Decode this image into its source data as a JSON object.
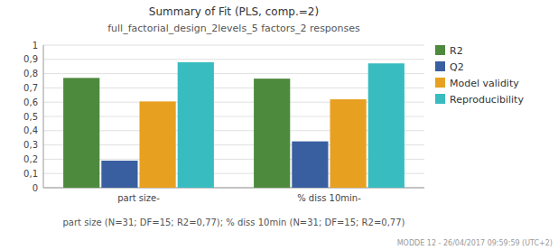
{
  "chart_data": {
    "type": "bar",
    "title": "Summary of Fit (PLS, comp.=2)",
    "subtitle": "full_factorial_design_2levels_5 factors_2 responses",
    "xlabel": "part size (N=31; DF=15; R2=0,77); % diss 10min (N=31; DF=15; R2=0,77)",
    "annotations": [
      "MODDE 12 - 26/04/2017 09:59:59 (UTC+2)"
    ],
    "categories": [
      "part size-",
      "% diss 10min-"
    ],
    "series": [
      {
        "name": "R2",
        "color": "#4e8a3e",
        "values": [
          0.77,
          0.765
        ]
      },
      {
        "name": "Q2",
        "color": "#3a5fa0",
        "values": [
          0.19,
          0.325
        ]
      },
      {
        "name": "Model validity",
        "color": "#e8a020",
        "values": [
          0.605,
          0.62
        ]
      },
      {
        "name": "Reproducibility",
        "color": "#38bcc0",
        "values": [
          0.88,
          0.872
        ]
      }
    ],
    "ylim": [
      0,
      1.0
    ],
    "yticks": [
      0,
      {
        "value": 0.1,
        "label": "0,1"
      },
      {
        "value": 0.2,
        "label": "0,2"
      },
      {
        "value": 0.3,
        "label": "0,3"
      },
      {
        "value": 0.4,
        "label": "0,4"
      },
      {
        "value": 0.5,
        "label": "0,5"
      },
      {
        "value": 0.6,
        "label": "0,6"
      },
      {
        "value": 0.7,
        "label": "0,7"
      },
      {
        "value": 0.8,
        "label": "0,8"
      },
      {
        "value": 0.9,
        "label": "0,9"
      },
      1
    ],
    "grid": true,
    "legend": "right"
  }
}
